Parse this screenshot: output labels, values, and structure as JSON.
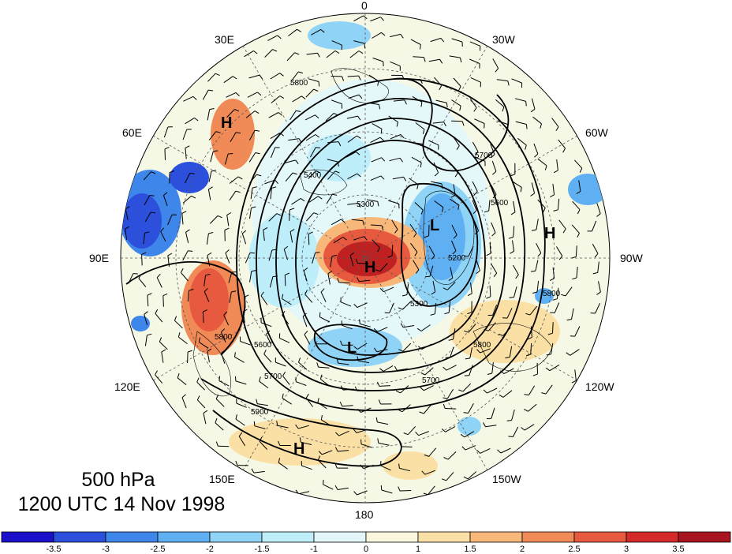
{
  "caption": {
    "level": "500 hPa",
    "time": "1200 UTC 14 Nov 1998"
  },
  "longitude_labels": [
    {
      "text": "0",
      "key": "0"
    },
    {
      "text": "30E",
      "key": "30E"
    },
    {
      "text": "30W",
      "key": "30W"
    },
    {
      "text": "60E",
      "key": "60E"
    },
    {
      "text": "60W",
      "key": "60W"
    },
    {
      "text": "90E",
      "key": "90E"
    },
    {
      "text": "90W",
      "key": "90W"
    },
    {
      "text": "120E",
      "key": "120E"
    },
    {
      "text": "120W",
      "key": "120W"
    },
    {
      "text": "150E",
      "key": "150E"
    },
    {
      "text": "150W",
      "key": "150W"
    },
    {
      "text": "180",
      "key": "180"
    }
  ],
  "contour_labels": [
    "5800",
    "5700",
    "5600",
    "5400",
    "5300",
    "5200",
    "5700",
    "5800",
    "5900",
    "5300",
    "5700",
    "5800",
    "5600",
    "5800"
  ],
  "pressure_centers": [
    "H",
    "H",
    "H",
    "H",
    "L",
    "L"
  ],
  "colorbar": {
    "ticks": [
      "-3.5",
      "-3",
      "-2.5",
      "-2",
      "-1.5",
      "-1",
      "0",
      "1",
      "1.5",
      "2",
      "2.5",
      "3",
      "3.5"
    ],
    "colors": [
      "#1a10c9",
      "#2c4fdc",
      "#3f86ea",
      "#5fb0f2",
      "#8fd3f7",
      "#bfeefb",
      "#e3f7fb",
      "#fbf7dc",
      "#fbe0a6",
      "#f8b87a",
      "#f08a57",
      "#e85a3f",
      "#d42a2a",
      "#a81520"
    ]
  }
}
